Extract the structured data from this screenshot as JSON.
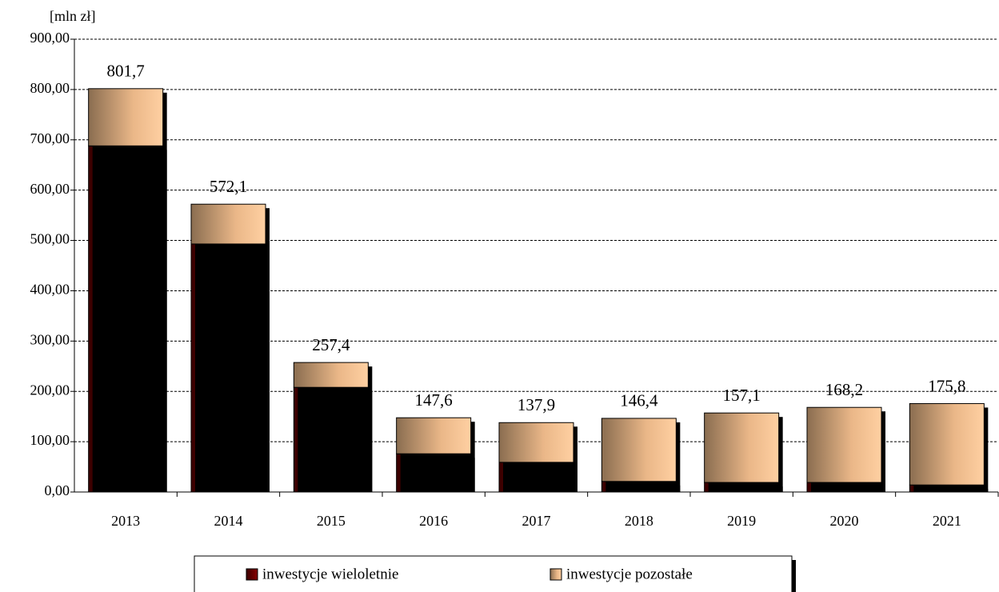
{
  "chart_data": {
    "type": "bar",
    "stacked": true,
    "y_axis_label": "[mln zł]",
    "categories": [
      "2013",
      "2014",
      "2015",
      "2016",
      "2017",
      "2018",
      "2019",
      "2020",
      "2021"
    ],
    "series": [
      {
        "name": "inwestycje wieloletnie",
        "color": "#7a0000",
        "values": [
          688,
          493,
          208,
          76,
          59,
          21,
          19,
          19,
          14
        ]
      },
      {
        "name": "inwestycje pozostałe",
        "color": "#f4c492",
        "values": [
          113.7,
          79.1,
          49.4,
          71.6,
          78.9,
          125.4,
          138.1,
          149.2,
          161.8
        ]
      }
    ],
    "totals": [
      801.7,
      572.1,
      257.4,
      147.6,
      137.9,
      146.4,
      157.1,
      168.2,
      175.8
    ],
    "total_labels": [
      "801,7",
      "572,1",
      "257,4",
      "147,6",
      "137,9",
      "146,4",
      "157,1",
      "168,2",
      "175,8"
    ],
    "ylim": [
      0,
      900
    ],
    "yticks": [
      {
        "value": 0,
        "label": "0,00"
      },
      {
        "value": 100,
        "label": "100,00"
      },
      {
        "value": 200,
        "label": "200,00"
      },
      {
        "value": 300,
        "label": "300,00"
      },
      {
        "value": 400,
        "label": "400,00"
      },
      {
        "value": 500,
        "label": "500,00"
      },
      {
        "value": 600,
        "label": "600,00"
      },
      {
        "value": 700,
        "label": "700,00"
      },
      {
        "value": 800,
        "label": "800,00"
      },
      {
        "value": 900,
        "label": "900,00"
      }
    ],
    "grid": true,
    "legend": "bottom"
  }
}
